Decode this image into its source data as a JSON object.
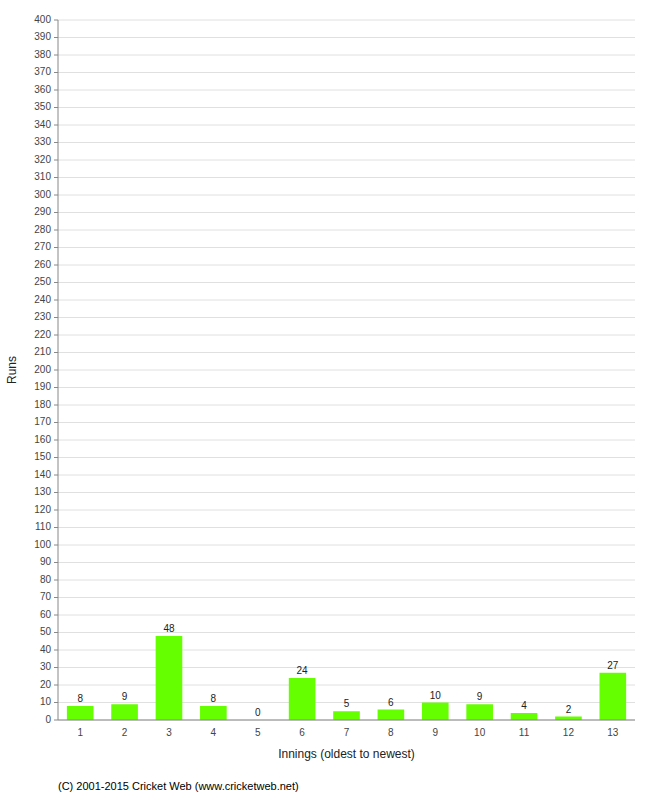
{
  "chart_data": {
    "type": "bar",
    "categories": [
      "1",
      "2",
      "3",
      "4",
      "5",
      "6",
      "7",
      "8",
      "9",
      "10",
      "11",
      "12",
      "13"
    ],
    "values": [
      8,
      9,
      48,
      8,
      0,
      24,
      5,
      6,
      10,
      9,
      4,
      2,
      27
    ],
    "color": "#66ff00",
    "x_label": "Innings (oldest to newest)",
    "y_label": "Runs",
    "ylim": [
      0,
      400
    ],
    "yticks": [
      0,
      10,
      20,
      30,
      40,
      50,
      60,
      70,
      80,
      90,
      100,
      110,
      120,
      130,
      140,
      150,
      160,
      170,
      180,
      190,
      200,
      210,
      220,
      230,
      240,
      250,
      260,
      270,
      280,
      290,
      300,
      310,
      320,
      330,
      340,
      350,
      360,
      370,
      380,
      390,
      400
    ],
    "grid": true,
    "data_labels": true,
    "annotations": [
      "(C) 2001-2015 Cricket Web (www.cricketweb.net)"
    ]
  }
}
